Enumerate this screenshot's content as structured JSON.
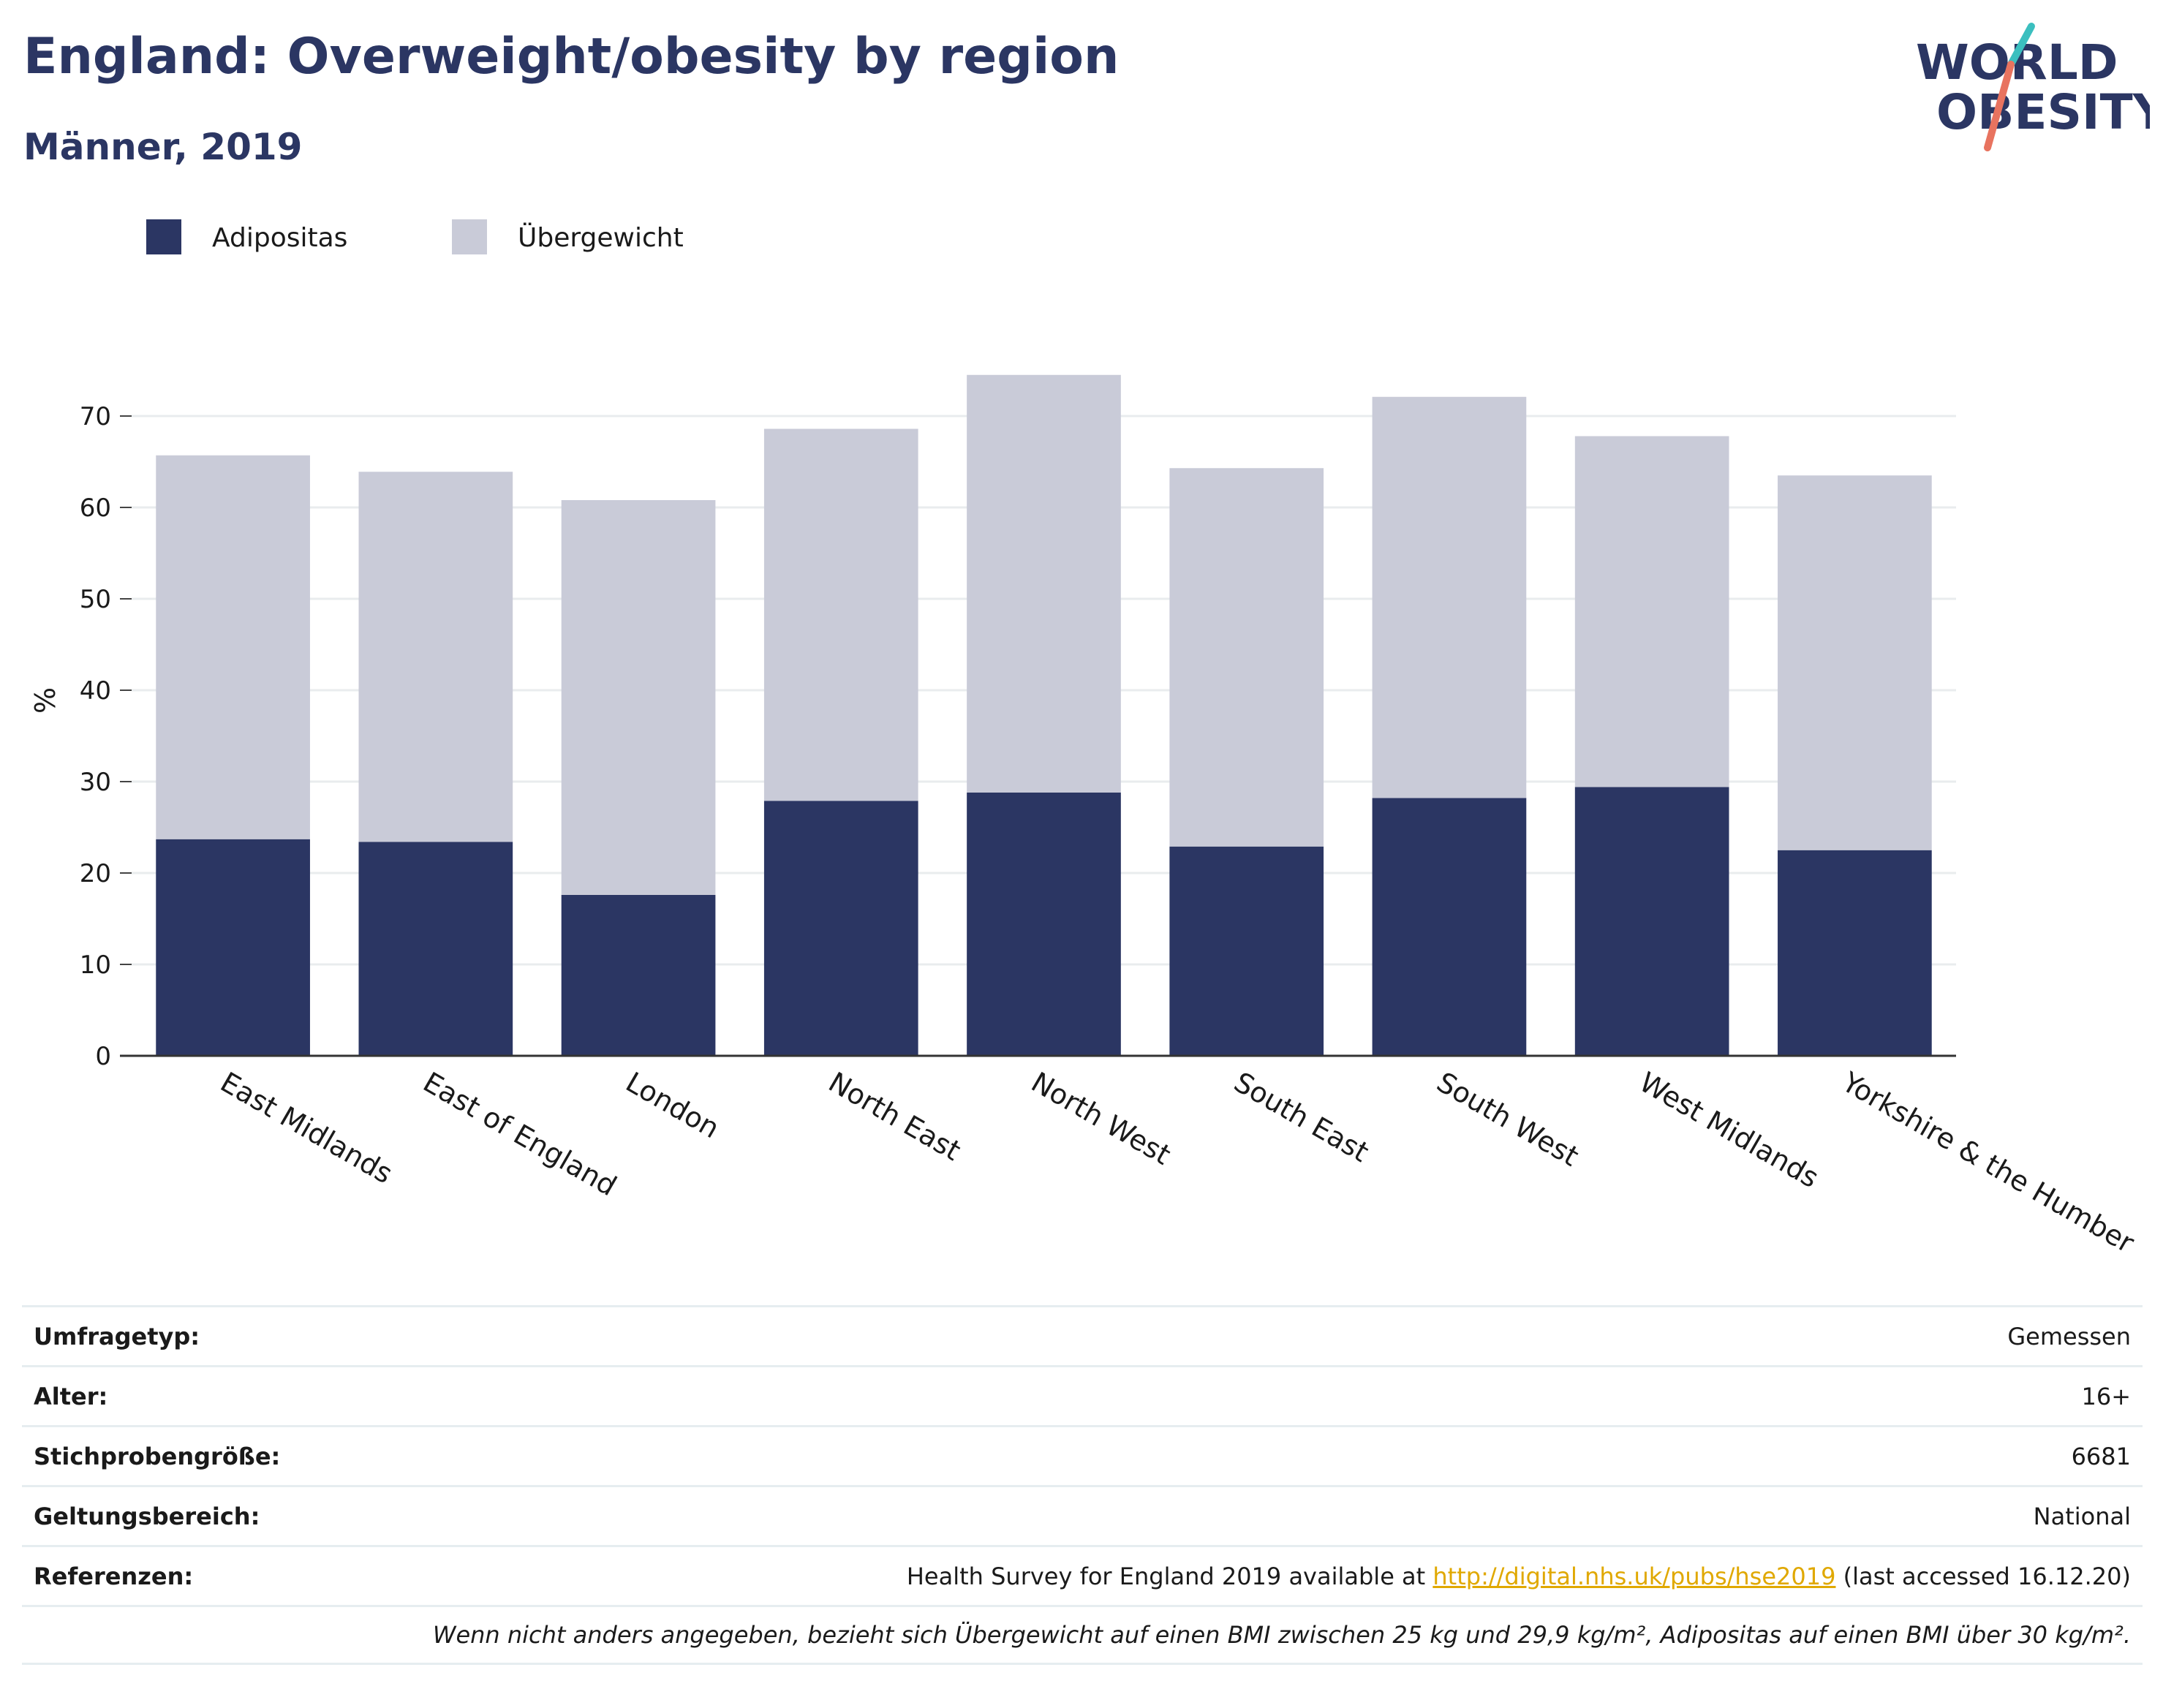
{
  "header": {
    "title": "England: Overweight/obesity by region",
    "subtitle": "Männer, 2019"
  },
  "logo": {
    "line1": "WORLD",
    "line2": "OBESITY",
    "accent_colors": [
      "#3bbfbf",
      "#e8735f"
    ],
    "text_color": "#2b3663"
  },
  "chart_data": {
    "type": "bar",
    "stacked": true,
    "categories": [
      "East Midlands",
      "East of England",
      "London",
      "North East",
      "North West",
      "South East",
      "South West",
      "West Midlands",
      "Yorkshire & the Humber"
    ],
    "series": [
      {
        "name": "Adipositas",
        "color": "#2b3663",
        "values": [
          23.7,
          23.4,
          17.6,
          27.9,
          28.8,
          22.9,
          28.2,
          29.4,
          22.5
        ]
      },
      {
        "name": "Übergewicht",
        "color": "#c9cbd8",
        "values": [
          42.0,
          40.5,
          43.2,
          40.7,
          45.7,
          41.4,
          43.9,
          38.4,
          41.0
        ]
      }
    ],
    "xlabel": "",
    "ylabel": "%",
    "ylim": [
      0,
      80
    ],
    "yticks": [
      0,
      10,
      20,
      30,
      40,
      50,
      60,
      70
    ],
    "grid": true,
    "legend_position": "top-left"
  },
  "info": {
    "rows": [
      {
        "label": "Umfragetyp:",
        "value": "Gemessen"
      },
      {
        "label": "Alter:",
        "value": "16+"
      },
      {
        "label": "Stichprobengröße:",
        "value": "6681"
      },
      {
        "label": "Geltungsbereich:",
        "value": "National"
      }
    ],
    "references": {
      "label": "Referenzen:",
      "prefix": "Health Survey for England 2019 available at ",
      "link": "http://digital.nhs.uk/pubs/hse2019",
      "suffix": " (last accessed 16.12.20)"
    },
    "note": "Wenn nicht anders angegeben, bezieht sich Übergewicht auf einen BMI zwischen 25 kg und 29,9 kg/m², Adipositas auf einen BMI über 30 kg/m²."
  }
}
